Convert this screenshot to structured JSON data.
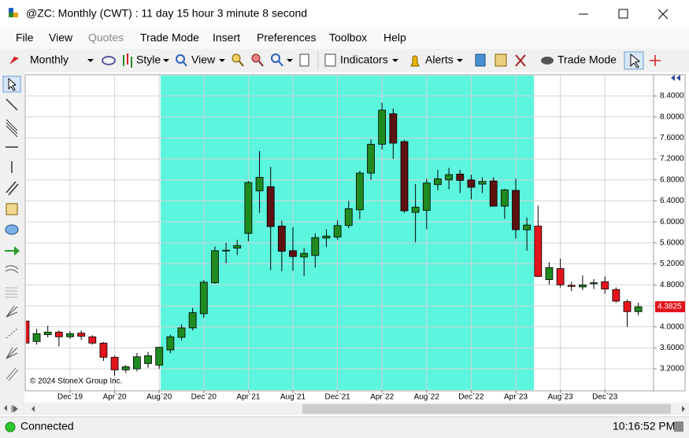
{
  "window": {
    "title": "@ZC: Monthly (CWT) : 11 day 15 hour 3 minute 8 second",
    "menu": [
      "File",
      "View",
      "Quotes",
      "Trade Mode",
      "Insert",
      "Preferences",
      "Toolbox",
      "Help"
    ]
  },
  "toolbar": {
    "items": [
      "Monthly",
      "Style",
      "View",
      "Indicators",
      "Alerts",
      "Trade Mode"
    ]
  },
  "status": {
    "connection": "Connected",
    "time": "10:16:52 PM"
  },
  "chart_data": {
    "type": "candlestick",
    "annotation": "© 2024 StoneX Group Inc.",
    "categories": [
      null,
      null,
      null,
      null,
      "Dec`19",
      null,
      null,
      null,
      "Apr`20",
      null,
      null,
      null,
      "Aug`20",
      null,
      null,
      null,
      "Dec`20",
      null,
      null,
      null,
      "Apr`21",
      null,
      null,
      null,
      "Aug`21",
      null,
      null,
      null,
      "Dec`21",
      null,
      null,
      null,
      "Apr`22",
      null,
      null,
      null,
      "Aug`22",
      null,
      null,
      null,
      "Dec`22",
      null,
      null,
      null,
      "Apr`23",
      null,
      null,
      null,
      "Aug`23",
      null,
      null,
      null,
      "Dec`23",
      null,
      null,
      null
    ],
    "open": [
      4.11,
      3.72,
      3.85,
      3.9,
      3.81,
      3.88,
      3.81,
      3.69,
      3.42,
      3.18,
      3.2,
      3.3,
      3.27,
      3.56,
      3.8,
      3.98,
      4.25,
      4.84,
      5.45,
      5.5,
      5.78,
      6.59,
      6.67,
      5.92,
      5.45,
      5.33,
      5.36,
      5.69,
      5.71,
      5.93,
      6.23,
      6.93,
      7.48,
      8.06,
      7.53,
      6.18,
      6.22,
      6.71,
      6.8,
      6.91,
      6.8,
      6.72,
      6.78,
      6.3,
      6.6,
      5.85,
      5.92,
      4.9,
      5.11,
      4.79,
      4.76,
      4.82,
      4.86,
      4.71,
      4.48,
      4.29
    ],
    "high": [
      4.26,
      3.96,
      4.02,
      3.93,
      3.92,
      3.93,
      3.84,
      3.71,
      3.45,
      3.27,
      3.5,
      3.52,
      3.62,
      3.85,
      4.05,
      4.36,
      4.89,
      5.53,
      5.6,
      5.66,
      6.78,
      7.35,
      7.05,
      6.02,
      5.9,
      5.5,
      5.78,
      5.86,
      6.03,
      6.4,
      6.97,
      7.57,
      8.27,
      8.16,
      7.56,
      6.72,
      6.82,
      6.99,
      7.03,
      6.99,
      6.9,
      6.85,
      6.85,
      6.63,
      6.82,
      6.08,
      6.31,
      5.23,
      5.3,
      4.86,
      4.98,
      4.91,
      4.96,
      4.75,
      4.52,
      4.46
    ],
    "low": [
      3.63,
      3.66,
      3.8,
      3.63,
      3.77,
      3.75,
      3.66,
      3.35,
      3.07,
      3.12,
      3.15,
      3.22,
      3.2,
      3.5,
      3.74,
      3.93,
      4.17,
      4.82,
      5.21,
      5.37,
      5.63,
      6.17,
      5.08,
      5.06,
      5.07,
      4.97,
      5.13,
      5.52,
      5.66,
      5.88,
      6.05,
      6.8,
      7.38,
      7.2,
      6.17,
      5.61,
      5.86,
      6.6,
      6.62,
      6.55,
      6.43,
      6.55,
      6.29,
      6.06,
      5.68,
      5.45,
      4.95,
      4.8,
      4.75,
      4.68,
      4.7,
      4.72,
      4.63,
      4.46,
      4.0,
      4.22
    ],
    "close": [
      3.69,
      3.87,
      3.9,
      3.81,
      3.87,
      3.82,
      3.69,
      3.42,
      3.18,
      3.24,
      3.43,
      3.45,
      3.61,
      3.81,
      3.98,
      4.27,
      4.85,
      5.45,
      5.46,
      5.55,
      6.75,
      6.85,
      5.91,
      5.44,
      5.34,
      5.4,
      5.7,
      5.73,
      5.93,
      6.25,
      6.93,
      7.48,
      8.13,
      7.5,
      6.21,
      6.28,
      6.74,
      6.82,
      6.9,
      6.79,
      6.66,
      6.77,
      6.3,
      6.61,
      5.85,
      5.94,
      4.96,
      5.13,
      4.8,
      4.77,
      4.8,
      4.84,
      4.72,
      4.49,
      4.29,
      4.3825
    ],
    "ylim": [
      2.8,
      8.8
    ],
    "yticks": [
      {
        "value": 3.2,
        "label": "3.2000"
      },
      {
        "value": 3.6,
        "label": "3.6000"
      },
      {
        "value": 4.0,
        "label": "4.0000"
      },
      {
        "value": 4.4,
        "label": "4.4000"
      },
      {
        "value": 4.8,
        "label": "4.8000"
      },
      {
        "value": 5.2,
        "label": "5.2000"
      },
      {
        "value": 5.6,
        "label": "5.6000"
      },
      {
        "value": 6.0,
        "label": "6.0000"
      },
      {
        "value": 6.4,
        "label": "6.4000"
      },
      {
        "value": 6.8,
        "label": "6.8000"
      },
      {
        "value": 7.2,
        "label": "7.2000"
      },
      {
        "value": 7.6,
        "label": "7.6000"
      },
      {
        "value": 8.0,
        "label": "8.0000"
      },
      {
        "value": 8.4,
        "label": "8.4000"
      }
    ],
    "grid": true,
    "up_color": "#1f8a1f",
    "down_color": "#e3141b",
    "down_color_shaded": "#5e1111",
    "highlight_color": "#5cf5de"
  }
}
